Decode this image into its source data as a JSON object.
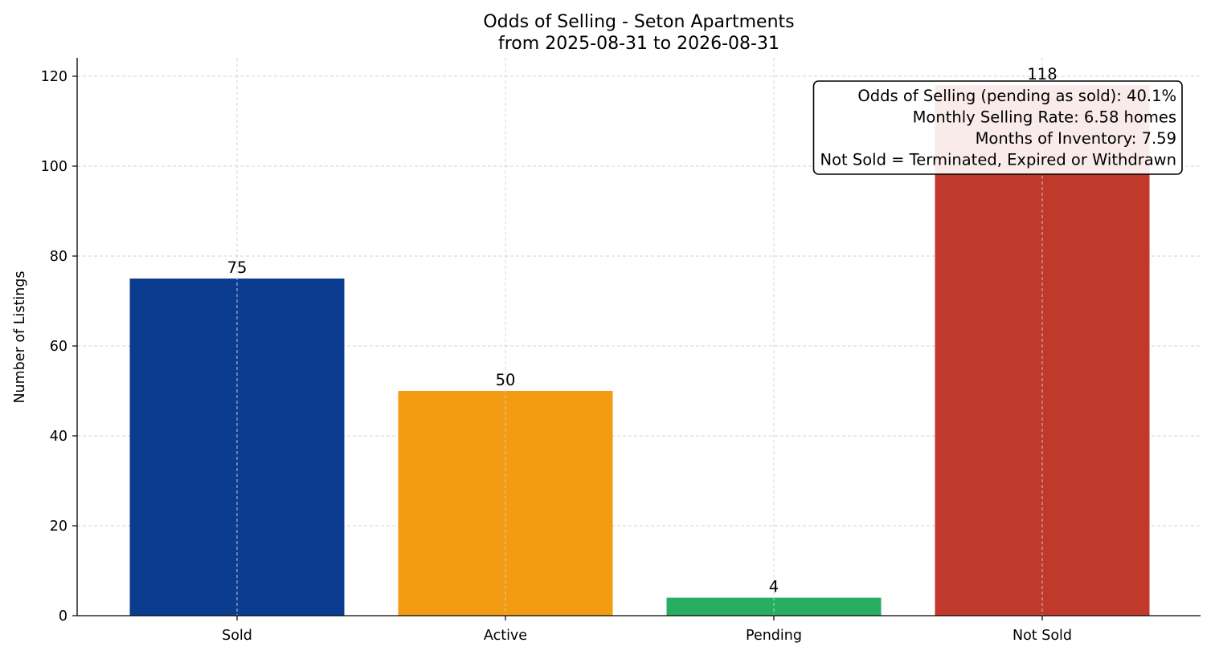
{
  "chart_data": {
    "type": "bar",
    "title": "Odds of Selling - Seton Apartments",
    "subtitle": "from 2025-08-31 to 2026-08-31",
    "xlabel": "",
    "ylabel": "Number of Listings",
    "categories": [
      "Sold",
      "Active",
      "Pending",
      "Not Sold"
    ],
    "values": [
      75,
      50,
      4,
      118
    ],
    "colors": [
      "#0b3c8f",
      "#f39c12",
      "#27ae60",
      "#c0392b"
    ],
    "ylim": [
      0,
      124
    ],
    "yticks": [
      0,
      20,
      40,
      60,
      80,
      100,
      120
    ],
    "grid": true,
    "annotation_lines": [
      "Odds of Selling (pending as sold): 40.1%",
      "Monthly Selling Rate: 6.58 homes",
      "Months of Inventory: 7.59",
      "Not Sold = Terminated, Expired or Withdrawn"
    ],
    "annotation_placement": "top-right"
  }
}
